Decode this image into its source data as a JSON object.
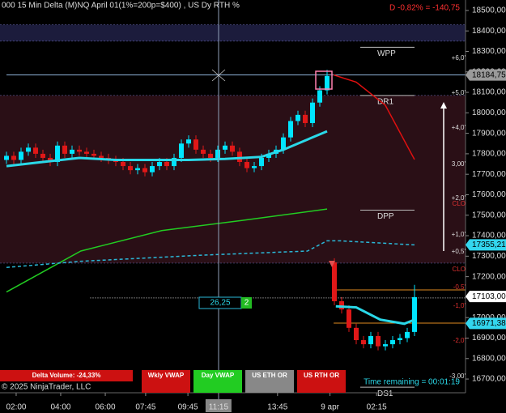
{
  "chart_data": {
    "type": "candlestick",
    "title": "000 15 Min Delta (M)NQ  April 01(1%=200p=$400) , US Dy RTH %",
    "change_label": "D -0,82% = -140,75",
    "up_color": "#00e5ff",
    "down_color": "#e01818",
    "open": [
      17770,
      17790,
      17770,
      17810,
      17830,
      17800,
      17780,
      17760,
      17840,
      17800,
      17820,
      17810,
      17800,
      17790,
      17780,
      17770,
      17760,
      17740,
      17720,
      17730,
      17710,
      17740,
      17760,
      17740,
      17780,
      17850,
      17870,
      17820,
      17800,
      17780,
      17820,
      17840,
      17810,
      17760,
      17730,
      17740,
      17780,
      17800,
      17820,
      17880,
      17960,
      17990,
      17950,
      18050,
      18110,
      17270,
      17080,
      17040,
      16950,
      16890,
      16870,
      16910,
      16860,
      16870,
      16890,
      16900,
      16930
    ],
    "high": [
      17810,
      17810,
      17830,
      17850,
      17850,
      17820,
      17800,
      17860,
      17860,
      17840,
      17840,
      17830,
      17820,
      17810,
      17800,
      17790,
      17780,
      17760,
      17750,
      17750,
      17760,
      17780,
      17780,
      17800,
      17870,
      17890,
      17890,
      17840,
      17820,
      17840,
      17860,
      17860,
      17830,
      17780,
      17760,
      17800,
      17820,
      17840,
      17900,
      17980,
      18010,
      18010,
      18070,
      18130,
      18210,
      17290,
      17100,
      17060,
      16970,
      16910,
      16930,
      16930,
      16890,
      16910,
      16920,
      16950,
      17160
    ],
    "low": [
      17750,
      17750,
      17750,
      17790,
      17780,
      17760,
      17740,
      17740,
      17780,
      17780,
      17790,
      17780,
      17770,
      17760,
      17750,
      17740,
      17720,
      17700,
      17700,
      17690,
      17690,
      17720,
      17720,
      17720,
      17760,
      17830,
      17800,
      17780,
      17760,
      17760,
      17800,
      17790,
      17740,
      17710,
      17710,
      17720,
      17760,
      17780,
      17800,
      17860,
      17940,
      17930,
      17930,
      18030,
      18090,
      17060,
      17020,
      16930,
      16870,
      16850,
      16850,
      16840,
      16840,
      16850,
      16870,
      16880,
      16910
    ],
    "close": [
      17790,
      17770,
      17810,
      17830,
      17800,
      17780,
      17760,
      17840,
      17800,
      17820,
      17810,
      17800,
      17790,
      17780,
      17770,
      17760,
      17740,
      17720,
      17730,
      17710,
      17740,
      17760,
      17740,
      17780,
      17850,
      17870,
      17820,
      17800,
      17780,
      17820,
      17840,
      17810,
      17760,
      17730,
      17740,
      17780,
      17800,
      17820,
      17880,
      17960,
      17990,
      17950,
      18050,
      18110,
      18180,
      17080,
      17040,
      16950,
      16890,
      16870,
      16910,
      16860,
      16870,
      16890,
      16900,
      16930,
      17100
    ],
    "ylim": [
      16633,
      18551
    ],
    "yticks": [
      {
        "value": 16700,
        "label": "16700,00"
      },
      {
        "value": 16800,
        "label": "16800,00"
      },
      {
        "value": 16900,
        "label": "16900,00"
      },
      {
        "value": 17000,
        "label": "17000,00"
      },
      {
        "value": 17100,
        "label": "17100,00"
      },
      {
        "value": 17200,
        "label": "17200,00"
      },
      {
        "value": 17300,
        "label": "17300,00"
      },
      {
        "value": 17400,
        "label": "17400,00"
      },
      {
        "value": 17500,
        "label": "17500,00"
      },
      {
        "value": 17600,
        "label": "17600,00"
      },
      {
        "value": 17700,
        "label": "17700,00"
      },
      {
        "value": 17800,
        "label": "17800,00"
      },
      {
        "value": 17900,
        "label": "17900,00"
      },
      {
        "value": 18000,
        "label": "18000,00"
      },
      {
        "value": 18100,
        "label": "18100,00"
      },
      {
        "value": 18200,
        "label": "18200,00"
      },
      {
        "value": 18300,
        "label": "18300,00"
      },
      {
        "value": 18400,
        "label": "18400,00"
      },
      {
        "value": 18500,
        "label": "18500,00"
      }
    ],
    "xticks": [
      {
        "value": 1.33,
        "label": "02:00"
      },
      {
        "value": 7.44,
        "label": "04:00"
      },
      {
        "value": 13.56,
        "label": "06:00"
      },
      {
        "value": 19.1,
        "label": "07:45"
      },
      {
        "value": 24.9,
        "label": "09:45"
      },
      {
        "value": 29.1,
        "label": "11:15"
      },
      {
        "value": 37.2,
        "label": "13:45"
      },
      {
        "value": 44.4,
        "label": "9 apr"
      },
      {
        "value": 50.8,
        "label": "02:15"
      }
    ],
    "zones": [
      {
        "from": 18350,
        "to": 18430,
        "color": "#1c1c3c"
      },
      {
        "from": 17266,
        "to": 18085,
        "color": "#2a0f16"
      }
    ],
    "lines": [
      {
        "color": "#2ad8e8",
        "width": 3,
        "dash": false,
        "x": [
          0,
          5,
          10,
          15,
          20,
          25,
          30,
          35,
          38,
          40,
          42,
          44
        ],
        "values": [
          17740,
          17760,
          17780,
          17770,
          17770,
          17770,
          17775,
          17785,
          17820,
          17850,
          17880,
          17910
        ]
      },
      {
        "color": "#2ad8e8",
        "width": 3,
        "dash": false,
        "x": [
          45.2,
          48,
          51.3,
          54.6,
          56
        ],
        "values": [
          17055,
          17050,
          16990,
          16970,
          16990
        ]
      },
      {
        "color": "#22cc22",
        "width": 1.5,
        "dash": false,
        "x": [
          0,
          10.2,
          21.3,
          32.4,
          44
        ],
        "values": [
          17125,
          17325,
          17425,
          17475,
          17530
        ]
      },
      {
        "color": "#2ab8d8",
        "width": 1.5,
        "dash": true,
        "x": [
          0,
          10.2,
          26.9,
          41.3,
          44,
          45.8,
          56
        ],
        "values": [
          17245,
          17275,
          17305,
          17325,
          17375,
          17375,
          17355
        ]
      },
      {
        "color": "#e01010",
        "width": 1.5,
        "dash": false,
        "x": [
          44.9,
          48,
          52,
          56
        ],
        "values": [
          18185,
          18150,
          18037,
          17772
        ]
      }
    ],
    "hlines": [
      {
        "value": 18185,
        "from": 0,
        "to": 63,
        "color": "#8fb3d9",
        "dash": false
      },
      {
        "value": 17096,
        "from": 11.5,
        "to": 63,
        "color": "#dddddd",
        "dash": true
      },
      {
        "value": 17135,
        "from": 44.9,
        "to": 63,
        "color": "#e08a20",
        "dash": false
      },
      {
        "value": 16973,
        "from": 44.9,
        "to": 63,
        "color": "#e08a20",
        "dash": false
      }
    ],
    "levels": [
      {
        "label": "WPP",
        "value": 18320
      },
      {
        "label": "DR1",
        "value": 18085
      },
      {
        "label": "DPP",
        "value": 17525
      },
      {
        "label": "DS1",
        "value": 16660
      }
    ],
    "price_markers": [
      {
        "value": 18184.75,
        "label": "18184,75",
        "color": "#9a9a9a"
      },
      {
        "value": 17355.21,
        "label": "17355,21",
        "color": "#33d6ee"
      },
      {
        "value": 17103,
        "label": "17103,00",
        "color": "#ffffff"
      },
      {
        "value": 16971.38,
        "label": "16971,38",
        "color": "#33d6ee"
      }
    ]
  },
  "right_labels": [
    "+6,0'",
    "+5,0'",
    "+4,0'",
    "3,00'",
    "+2,0'",
    "CLO",
    "+1,0'",
    "+0,5'",
    "CLO",
    "-0,5'",
    "-1,0'",
    "-2,0'",
    "-3,00'"
  ],
  "buttons": [
    "Delta Volume: -24,33%",
    "Wkly VWAP",
    "Day VWAP",
    "US ETH OR",
    "US RTH OR"
  ],
  "copyright": "© 2025 NinjaTrader, LLC",
  "time_remaining": "Time remaining = 00:01:19",
  "order_box": {
    "price": "26,25",
    "count": "2"
  }
}
